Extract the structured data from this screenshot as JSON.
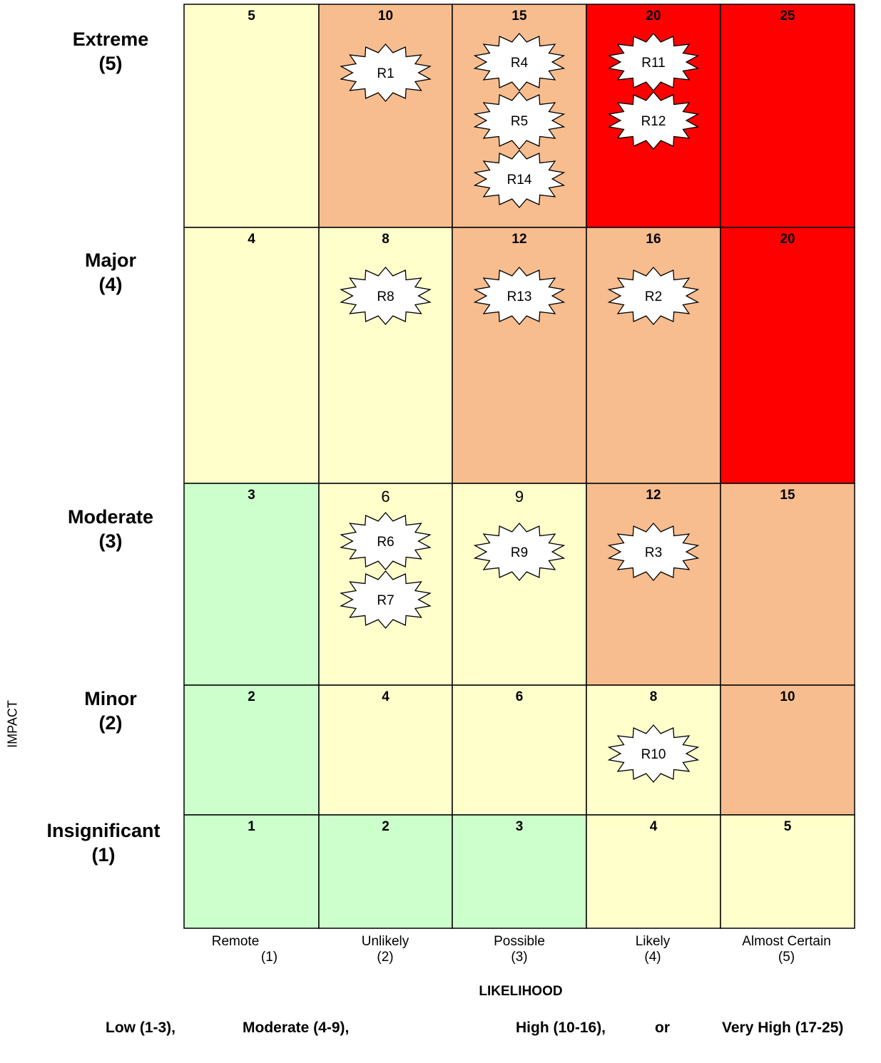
{
  "chart_data": {
    "type": "heatmap",
    "xlabel": "LIKELIHOOD",
    "ylabel": "IMPACT",
    "likelihood_levels": [
      {
        "name": "Remote",
        "value": "(1)"
      },
      {
        "name": "Unlikely",
        "value": "(2)"
      },
      {
        "name": "Possible",
        "value": "(3)"
      },
      {
        "name": "Likely",
        "value": "(4)"
      },
      {
        "name": "Almost Certain",
        "value": "(5)"
      }
    ],
    "impact_levels": [
      {
        "name": "Extreme",
        "value": "(5)"
      },
      {
        "name": "Major",
        "value": "(4)"
      },
      {
        "name": "Moderate",
        "value": "(3)"
      },
      {
        "name": "Minor",
        "value": "(2)"
      },
      {
        "name": "Insignificant",
        "value": "(1)"
      }
    ],
    "scores": [
      [
        5,
        10,
        15,
        20,
        25
      ],
      [
        4,
        8,
        12,
        16,
        20
      ],
      [
        3,
        6,
        9,
        12,
        15
      ],
      [
        2,
        4,
        6,
        8,
        10
      ],
      [
        1,
        2,
        3,
        4,
        5
      ]
    ],
    "unbolded_scores": [
      [
        2,
        1
      ],
      [
        2,
        2
      ]
    ],
    "colors": {
      "low": "#ccffcc",
      "moderate": "#ffffcc",
      "high": "#f7bd8f",
      "very_high": "#ff0000"
    },
    "risks": [
      {
        "id": "R1",
        "impact": 5,
        "likelihood": 2
      },
      {
        "id": "R4",
        "impact": 5,
        "likelihood": 3
      },
      {
        "id": "R5",
        "impact": 5,
        "likelihood": 3
      },
      {
        "id": "R14",
        "impact": 5,
        "likelihood": 3
      },
      {
        "id": "R11",
        "impact": 5,
        "likelihood": 4
      },
      {
        "id": "R12",
        "impact": 5,
        "likelihood": 4
      },
      {
        "id": "R8",
        "impact": 4,
        "likelihood": 2
      },
      {
        "id": "R13",
        "impact": 4,
        "likelihood": 3
      },
      {
        "id": "R2",
        "impact": 4,
        "likelihood": 4
      },
      {
        "id": "R6",
        "impact": 3,
        "likelihood": 2
      },
      {
        "id": "R7",
        "impact": 3,
        "likelihood": 2
      },
      {
        "id": "R9",
        "impact": 3,
        "likelihood": 3
      },
      {
        "id": "R3",
        "impact": 3,
        "likelihood": 4
      },
      {
        "id": "R10",
        "impact": 2,
        "likelihood": 4
      }
    ],
    "legend": {
      "low": "Low (1-3),",
      "moderate": "Moderate (4-9),",
      "high": "High (10-16),",
      "or": "or",
      "very_high": "Very High (17-25)"
    }
  }
}
